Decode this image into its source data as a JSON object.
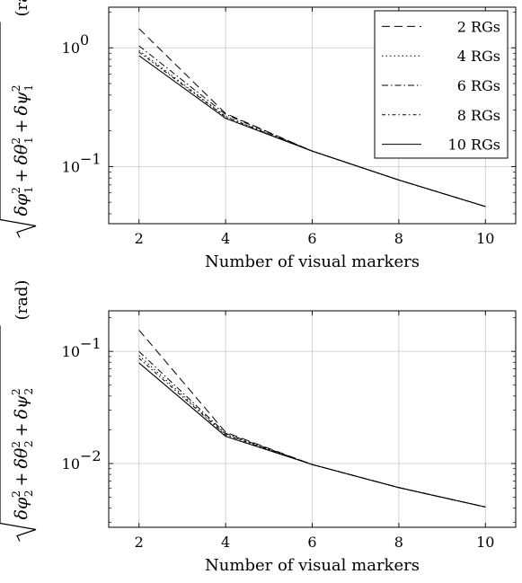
{
  "chart_data": [
    {
      "type": "line",
      "xlabel": "Number of visual markers",
      "ylabel_unit": "(rad)",
      "ylabel_symbols": [
        "δφ",
        "δθ",
        "δψ"
      ],
      "ylabel_index": "1",
      "yscale": "log",
      "xlim": [
        1.3,
        10.7
      ],
      "ylim": [
        0.033,
        2.2
      ],
      "xticks": [
        2,
        4,
        6,
        8,
        10
      ],
      "yticks": [
        {
          "value": 1,
          "mantissa": "10",
          "exp": "0"
        },
        {
          "value": 0.1,
          "mantissa": "10",
          "exp": "−1"
        }
      ],
      "grid": true,
      "legend_position": "top-right",
      "x": [
        2,
        4,
        6,
        8,
        10
      ],
      "series": [
        {
          "name": "2 RGs",
          "style": "dashed",
          "values": [
            1.45,
            0.28,
            0.135,
            0.077,
            0.046
          ]
        },
        {
          "name": "4 RGs",
          "style": "dotted",
          "values": [
            0.95,
            0.265,
            0.135,
            0.077,
            0.046
          ]
        },
        {
          "name": "6 RGs",
          "style": "dashdot",
          "values": [
            1.04,
            0.275,
            0.135,
            0.077,
            0.046
          ]
        },
        {
          "name": "8 RGs",
          "style": "dashdot-loose",
          "values": [
            0.92,
            0.262,
            0.135,
            0.077,
            0.046
          ]
        },
        {
          "name": "10 RGs",
          "style": "solid",
          "values": [
            0.86,
            0.255,
            0.135,
            0.077,
            0.046
          ]
        }
      ]
    },
    {
      "type": "line",
      "xlabel": "Number of visual markers",
      "ylabel_unit": "(rad)",
      "ylabel_symbols": [
        "δφ",
        "δθ",
        "δψ"
      ],
      "ylabel_index": "2",
      "yscale": "log",
      "xlim": [
        1.3,
        10.7
      ],
      "ylim": [
        0.0027,
        0.23
      ],
      "xticks": [
        2,
        4,
        6,
        8,
        10
      ],
      "yticks": [
        {
          "value": 0.1,
          "mantissa": "10",
          "exp": "−1"
        },
        {
          "value": 0.01,
          "mantissa": "10",
          "exp": "−2"
        }
      ],
      "grid": true,
      "legend_position": "none",
      "x": [
        2,
        4,
        6,
        8,
        10
      ],
      "series": [
        {
          "style": "dashed",
          "values": [
            0.155,
            0.019,
            0.0098,
            0.0061,
            0.0041
          ]
        },
        {
          "style": "dotted",
          "values": [
            0.092,
            0.0182,
            0.0098,
            0.0061,
            0.0041
          ]
        },
        {
          "style": "dashdot",
          "values": [
            0.1,
            0.0186,
            0.0098,
            0.0061,
            0.0041
          ]
        },
        {
          "style": "dashdot-loose",
          "values": [
            0.087,
            0.018,
            0.0098,
            0.0061,
            0.0041
          ]
        },
        {
          "style": "solid",
          "values": [
            0.079,
            0.0175,
            0.0098,
            0.0061,
            0.0041
          ]
        }
      ]
    }
  ]
}
